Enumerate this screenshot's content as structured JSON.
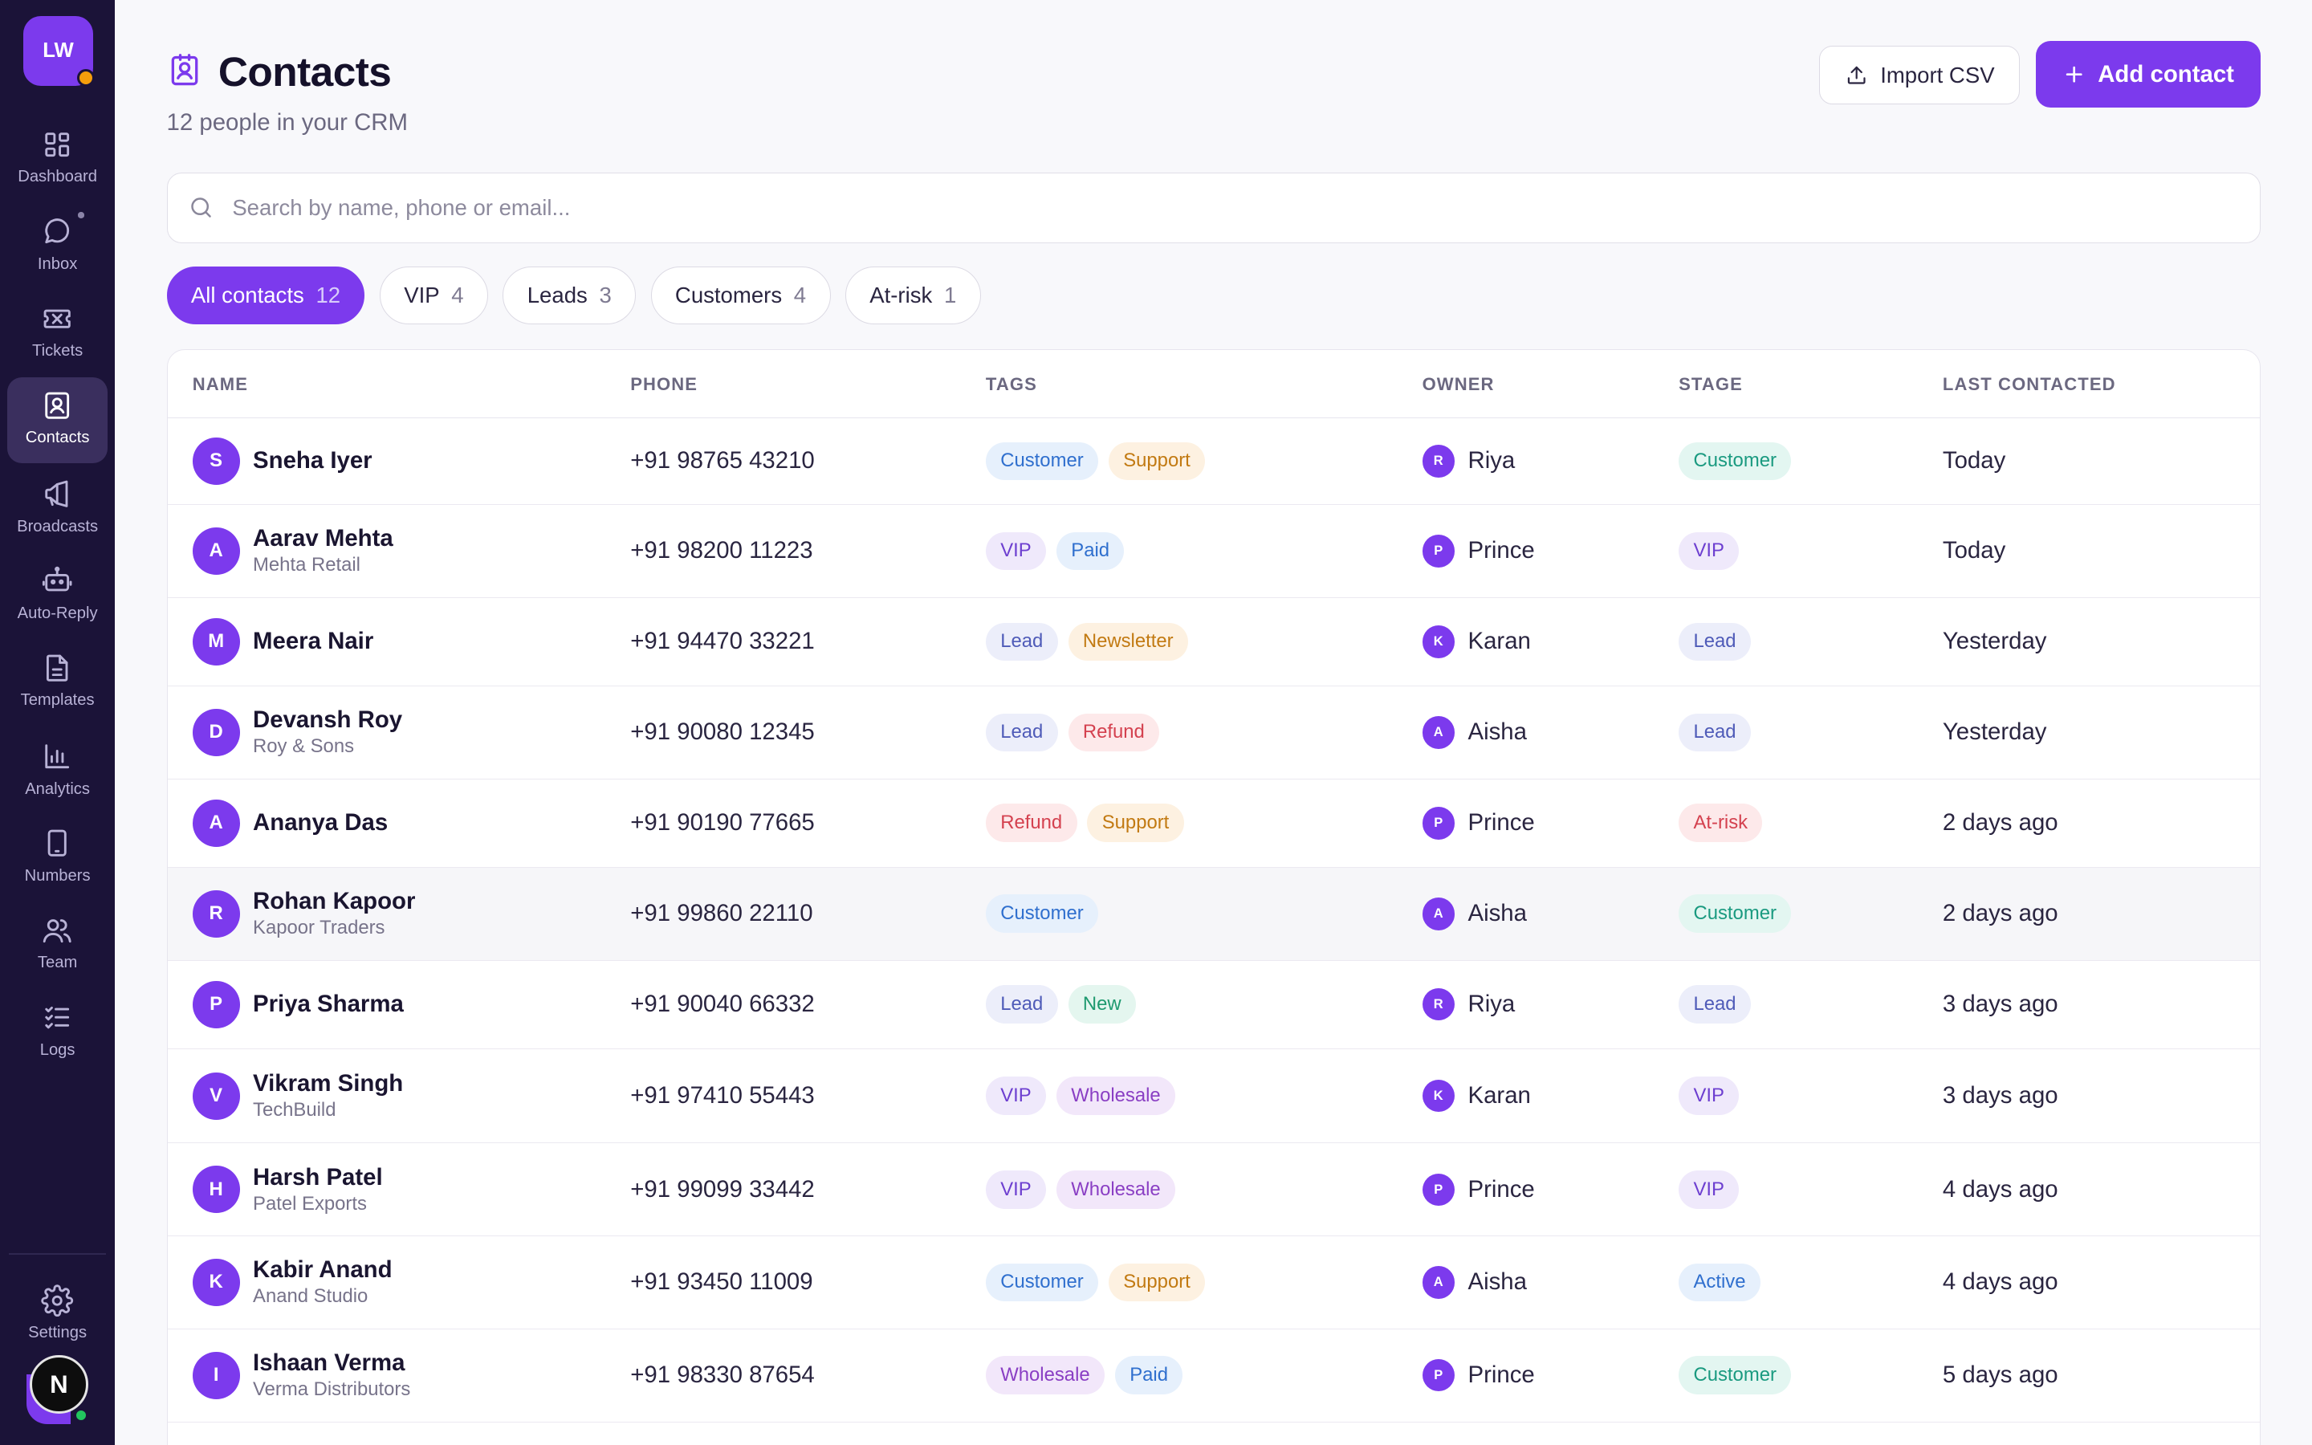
{
  "workspace": {
    "initials": "LW"
  },
  "nav": [
    {
      "label": "Dashboard",
      "icon": "grid-icon",
      "active": false
    },
    {
      "label": "Inbox",
      "icon": "chat-bubble-icon",
      "active": false
    },
    {
      "label": "Tickets",
      "icon": "ticket-icon",
      "active": false
    },
    {
      "label": "Contacts",
      "icon": "contact-card-icon",
      "active": true
    },
    {
      "label": "Broadcasts",
      "icon": "megaphone-icon",
      "active": false
    },
    {
      "label": "Auto-Reply",
      "icon": "robot-icon",
      "active": false
    },
    {
      "label": "Templates",
      "icon": "document-icon",
      "active": false
    },
    {
      "label": "Analytics",
      "icon": "bar-chart-icon",
      "active": false
    },
    {
      "label": "Numbers",
      "icon": "phone-device-icon",
      "active": false
    },
    {
      "label": "Team",
      "icon": "users-icon",
      "active": false
    },
    {
      "label": "Logs",
      "icon": "checklist-icon",
      "active": false
    }
  ],
  "settings": {
    "label": "Settings"
  },
  "user": {
    "initial": "N"
  },
  "header": {
    "title": "Contacts",
    "subtitle": "12 people in your CRM",
    "import_label": "Import CSV",
    "add_label": "Add contact"
  },
  "search": {
    "placeholder": "Search by name, phone or email...",
    "value": ""
  },
  "filters": [
    {
      "label": "All contacts",
      "count": "12",
      "active": true
    },
    {
      "label": "VIP",
      "count": "4",
      "active": false
    },
    {
      "label": "Leads",
      "count": "3",
      "active": false
    },
    {
      "label": "Customers",
      "count": "4",
      "active": false
    },
    {
      "label": "At-risk",
      "count": "1",
      "active": false
    }
  ],
  "table": {
    "columns": [
      "NAME",
      "PHONE",
      "TAGS",
      "OWNER",
      "STAGE",
      "LAST CONTACTED"
    ],
    "rows": [
      {
        "initial": "S",
        "name": "Sneha Iyer",
        "company": "",
        "phone": "+91 98765 43210",
        "tags": [
          "Customer",
          "Support"
        ],
        "owner_initial": "R",
        "owner": "Riya",
        "stage": "Customer",
        "last": "Today"
      },
      {
        "initial": "A",
        "name": "Aarav Mehta",
        "company": "Mehta Retail",
        "phone": "+91 98200 11223",
        "tags": [
          "VIP",
          "Paid"
        ],
        "owner_initial": "P",
        "owner": "Prince",
        "stage": "VIP",
        "last": "Today"
      },
      {
        "initial": "M",
        "name": "Meera Nair",
        "company": "",
        "phone": "+91 94470 33221",
        "tags": [
          "Lead",
          "Newsletter"
        ],
        "owner_initial": "K",
        "owner": "Karan",
        "stage": "Lead",
        "last": "Yesterday"
      },
      {
        "initial": "D",
        "name": "Devansh Roy",
        "company": "Roy & Sons",
        "phone": "+91 90080 12345",
        "tags": [
          "Lead",
          "Refund"
        ],
        "owner_initial": "A",
        "owner": "Aisha",
        "stage": "Lead",
        "last": "Yesterday"
      },
      {
        "initial": "A",
        "name": "Ananya Das",
        "company": "",
        "phone": "+91 90190 77665",
        "tags": [
          "Refund",
          "Support"
        ],
        "owner_initial": "P",
        "owner": "Prince",
        "stage": "At-risk",
        "last": "2 days ago"
      },
      {
        "initial": "R",
        "name": "Rohan Kapoor",
        "company": "Kapoor Traders",
        "phone": "+91 99860 22110",
        "tags": [
          "Customer"
        ],
        "owner_initial": "A",
        "owner": "Aisha",
        "stage": "Customer",
        "last": "2 days ago",
        "highlighted": true
      },
      {
        "initial": "P",
        "name": "Priya Sharma",
        "company": "",
        "phone": "+91 90040 66332",
        "tags": [
          "Lead",
          "New"
        ],
        "owner_initial": "R",
        "owner": "Riya",
        "stage": "Lead",
        "last": "3 days ago"
      },
      {
        "initial": "V",
        "name": "Vikram Singh",
        "company": "TechBuild",
        "phone": "+91 97410 55443",
        "tags": [
          "VIP",
          "Wholesale"
        ],
        "owner_initial": "K",
        "owner": "Karan",
        "stage": "VIP",
        "last": "3 days ago"
      },
      {
        "initial": "H",
        "name": "Harsh Patel",
        "company": "Patel Exports",
        "phone": "+91 99099 33442",
        "tags": [
          "VIP",
          "Wholesale"
        ],
        "owner_initial": "P",
        "owner": "Prince",
        "stage": "VIP",
        "last": "4 days ago"
      },
      {
        "initial": "K",
        "name": "Kabir Anand",
        "company": "Anand Studio",
        "phone": "+91 93450 11009",
        "tags": [
          "Customer",
          "Support"
        ],
        "owner_initial": "A",
        "owner": "Aisha",
        "stage": "Active",
        "last": "4 days ago"
      },
      {
        "initial": "I",
        "name": "Ishaan Verma",
        "company": "Verma Distributors",
        "phone": "+91 98330 87654",
        "tags": [
          "Wholesale",
          "Paid"
        ],
        "owner_initial": "P",
        "owner": "Prince",
        "stage": "Customer",
        "last": "5 days ago"
      }
    ]
  },
  "tag_colors": {
    "Customer": {
      "bg": "#e6f0fc",
      "fg": "#2f6fce"
    },
    "Support": {
      "bg": "#fdf1e1",
      "fg": "#c27a12"
    },
    "VIP": {
      "bg": "#efe9fb",
      "fg": "#6d3fd0"
    },
    "Paid": {
      "bg": "#e6f0fc",
      "fg": "#2f6fce"
    },
    "Lead": {
      "bg": "#eceefa",
      "fg": "#4f5bb8"
    },
    "Newsletter": {
      "bg": "#fdf1e1",
      "fg": "#c27a12"
    },
    "Refund": {
      "bg": "#fde9ea",
      "fg": "#d4414f"
    },
    "New": {
      "bg": "#e4f6ef",
      "fg": "#1f9a70"
    },
    "Wholesale": {
      "bg": "#f2e7fa",
      "fg": "#8a3fc4"
    }
  },
  "stage_colors": {
    "Customer": {
      "bg": "#e3f6f1",
      "fg": "#1a9a80"
    },
    "VIP": {
      "bg": "#efe9fb",
      "fg": "#6d3fd0"
    },
    "Lead": {
      "bg": "#eceefa",
      "fg": "#4f5bb8"
    },
    "At-risk": {
      "bg": "#fde9ea",
      "fg": "#d4414f"
    },
    "Active": {
      "bg": "#e6f0fc",
      "fg": "#2f6fce"
    }
  },
  "accent": "#7c3aed"
}
